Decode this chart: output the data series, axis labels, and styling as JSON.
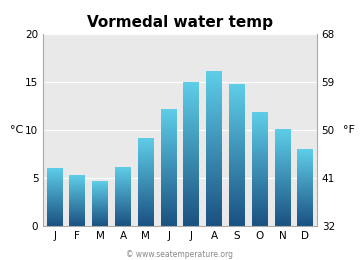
{
  "title": "Vormedal water temp",
  "months": [
    "J",
    "F",
    "M",
    "A",
    "M",
    "J",
    "J",
    "A",
    "S",
    "O",
    "N",
    "D"
  ],
  "values_c": [
    6.1,
    5.3,
    4.7,
    6.2,
    9.2,
    12.2,
    15.0,
    16.1,
    14.8,
    11.9,
    10.1,
    8.0
  ],
  "ylabel_left": "°C",
  "ylabel_right": "°F",
  "yticks_c": [
    0,
    5,
    10,
    15,
    20
  ],
  "yticks_f": [
    32,
    41,
    50,
    59,
    68
  ],
  "ylim_c": [
    0,
    20
  ],
  "bar_color_top": "#5ecde8",
  "bar_color_bottom": "#1a5080",
  "bg_color": "#e9e9e9",
  "fig_bg_color": "#ffffff",
  "watermark": "© www.seatemperature.org",
  "title_fontsize": 11,
  "tick_fontsize": 7.5,
  "label_fontsize": 8,
  "watermark_fontsize": 5.5
}
